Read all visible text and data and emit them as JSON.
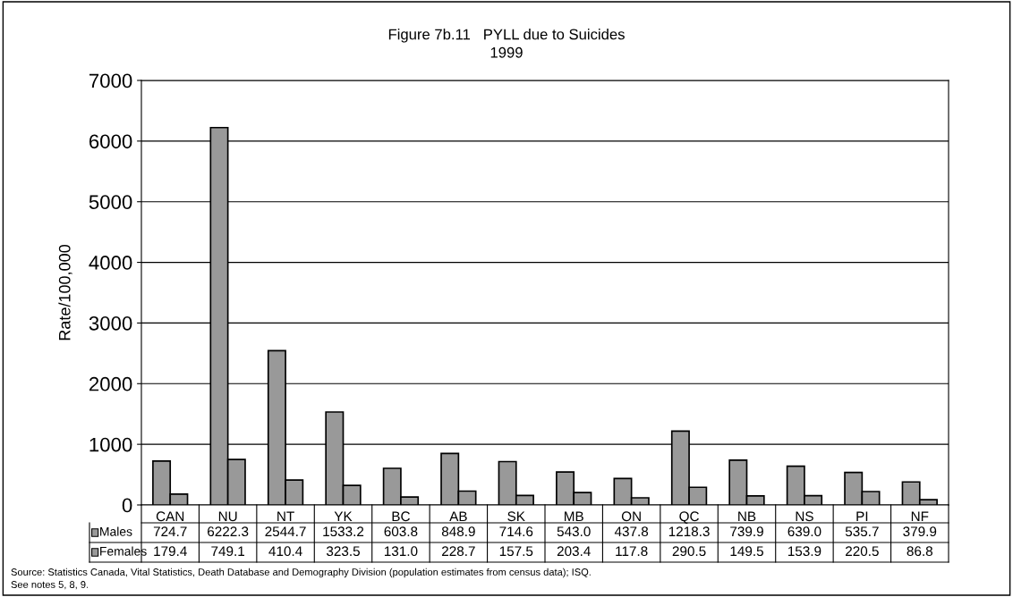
{
  "chart_data": {
    "type": "bar",
    "title": "Figure 7b.11   PYLL due to Suicides\n1999",
    "ylabel": "Rate/100,000",
    "categories": [
      "CAN",
      "NU",
      "NT",
      "YK",
      "BC",
      "AB",
      "SK",
      "MB",
      "ON",
      "QC",
      "NB",
      "NS",
      "PI",
      "NF"
    ],
    "series": [
      {
        "name": "Males",
        "color": "#999999",
        "values": [
          724.7,
          6222.3,
          2544.7,
          1533.2,
          603.8,
          848.9,
          714.6,
          543.0,
          437.8,
          1218.3,
          739.9,
          639.0,
          535.7,
          379.9
        ],
        "value_labels": [
          "724.7",
          "6222.3",
          "2544.7",
          "1533.2",
          "603.8",
          "848.9",
          "714.6",
          "543.0",
          "437.8",
          "1218.3",
          "739.9",
          "639.0",
          "535.7",
          "379.9"
        ]
      },
      {
        "name": "Females",
        "color": "#999999",
        "values": [
          179.4,
          749.1,
          410.4,
          323.5,
          131.0,
          228.7,
          157.5,
          203.4,
          117.8,
          290.5,
          149.5,
          153.9,
          220.5,
          86.8
        ],
        "value_labels": [
          "179.4",
          "749.1",
          "410.4",
          "323.5",
          "131.0",
          "228.7",
          "157.5",
          "203.4",
          "117.8",
          "290.5",
          "149.5",
          "153.9",
          "220.5",
          "86.8"
        ]
      }
    ],
    "ylim": [
      0,
      7000
    ],
    "yticks": [
      0,
      1000,
      2000,
      3000,
      4000,
      5000,
      6000,
      7000
    ],
    "grid": "y",
    "legend": "bottom",
    "annotations": [
      "Source: Statistics Canada, Vital Statistics, Death Database and Demography Division (population estimates from census data); ISQ.",
      "See notes 5, 8, 9."
    ]
  }
}
